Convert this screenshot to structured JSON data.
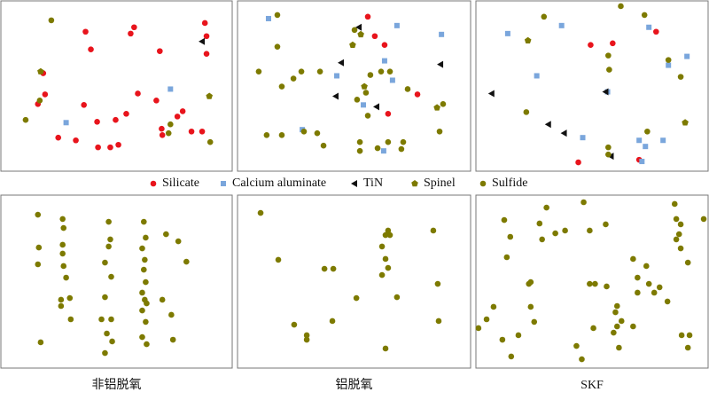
{
  "chart_data": [
    {
      "type": "scatter",
      "xlim": [
        0,
        100
      ],
      "ylim": [
        0,
        100
      ],
      "series": [
        {
          "name": "Silicate",
          "color": "#e8141c",
          "marker": "circle",
          "x": [
            36.6,
            57.6,
            56.1,
            88.2,
            88.9,
            38.9,
            68.7,
            88.9,
            18.3,
            19.1,
            16.0,
            35.9,
            59.2,
            67.2,
            78.6,
            76.3,
            54.2,
            41.6,
            49.6,
            24.8,
            32.4,
            50.8,
            42.0,
            47.3,
            69.5,
            69.8,
            82.4,
            87.0
          ],
          "y": [
            81.9,
            84.5,
            80.8,
            87.0,
            79.3,
            71.5,
            70.5,
            68.9,
            57.5,
            45.1,
            39.4,
            38.9,
            45.6,
            41.5,
            35.2,
            32.1,
            33.7,
            29.0,
            30.1,
            19.7,
            18.1,
            15.5,
            14.0,
            14.0,
            24.9,
            21.2,
            23.3,
            23.3
          ]
        },
        {
          "name": "Calcium aluminate",
          "color": "#7aa6dc",
          "marker": "square",
          "x": [
            73.3,
            28.2
          ],
          "y": [
            48.2,
            28.5
          ]
        },
        {
          "name": "TiN",
          "color": "#111111",
          "marker": "triangle",
          "x": [
            87.0
          ],
          "y": [
            76.2
          ]
        },
        {
          "name": "Spinel",
          "color": "#7d7a00",
          "marker": "pentagon",
          "x": [
            17.2,
            90.1
          ],
          "y": [
            58.5,
            44.0
          ]
        },
        {
          "name": "Sulfide",
          "color": "#7d7a00",
          "marker": "circle",
          "x": [
            21.8,
            10.7,
            16.8,
            73.3,
            72.5,
            90.5
          ],
          "y": [
            88.6,
            30.1,
            41.5,
            27.5,
            22.3,
            17.1
          ]
        }
      ]
    },
    {
      "type": "scatter",
      "xlim": [
        0,
        100
      ],
      "ylim": [
        0,
        100
      ],
      "series": [
        {
          "name": "Silicate",
          "color": "#e8141c",
          "marker": "circle",
          "x": [
            55.9,
            58.9,
            63.1,
            64.6,
            77.2
          ],
          "y": [
            90.7,
            79.3,
            74.1,
            33.7,
            45.1
          ]
        },
        {
          "name": "Calcium aluminate",
          "color": "#7aa6dc",
          "marker": "square",
          "x": [
            13.3,
            68.4,
            87.5,
            63.1,
            66.5,
            42.6,
            54.0,
            27.8,
            62.7
          ],
          "y": [
            89.6,
            85.5,
            80.3,
            64.8,
            53.4,
            56.0,
            38.9,
            24.4,
            11.9
          ]
        },
        {
          "name": "TiN",
          "color": "#111111",
          "marker": "triangle",
          "x": [
            52.1,
            44.5,
            87.1,
            42.2,
            59.7
          ],
          "y": [
            84.5,
            63.7,
            62.7,
            44.0,
            37.8
          ]
        },
        {
          "name": "Spinel",
          "color": "#7d7a00",
          "marker": "pentagon",
          "x": [
            52.9,
            49.4,
            54.4,
            85.6
          ],
          "y": [
            80.3,
            74.1,
            49.7,
            37.3
          ]
        },
        {
          "name": "Sulfide",
          "color": "#7d7a00",
          "marker": "circle",
          "x": [
            17.1,
            50.2,
            17.1,
            9.1,
            27.4,
            24.0,
            19.0,
            35.4,
            61.6,
            57.0,
            65.4,
            73.0,
            55.1,
            88.2,
            55.9,
            51.3,
            28.5,
            12.5,
            19.0,
            34.2,
            36.9,
            52.5,
            64.6,
            71.1,
            70.3,
            60.1,
            52.5,
            86.7
          ],
          "y": [
            91.7,
            82.9,
            73.1,
            58.5,
            58.5,
            54.4,
            49.7,
            58.5,
            58.5,
            56.5,
            58.5,
            48.2,
            46.1,
            39.4,
            32.6,
            42.0,
            23.3,
            21.2,
            21.2,
            22.3,
            15.0,
            17.1,
            17.1,
            17.1,
            13.0,
            13.5,
            11.9,
            23.3
          ]
        }
      ]
    },
    {
      "type": "scatter",
      "xlim": [
        0,
        100
      ],
      "ylim": [
        0,
        100
      ],
      "series": [
        {
          "name": "Silicate",
          "color": "#e8141c",
          "marker": "circle",
          "x": [
            49.4,
            58.9,
            77.6,
            70.3,
            44.1
          ],
          "y": [
            74.1,
            75.1,
            81.9,
            6.7,
            5.2
          ]
        },
        {
          "name": "Calcium aluminate",
          "color": "#7aa6dc",
          "marker": "square",
          "x": [
            13.7,
            36.9,
            74.5,
            82.9,
            90.9,
            26.2,
            56.7,
            46.0,
            70.3,
            80.6,
            73.0,
            71.5
          ],
          "y": [
            80.8,
            85.5,
            84.5,
            62.2,
            67.4,
            56.0,
            46.6,
            19.7,
            18.1,
            18.1,
            14.5,
            5.7
          ]
        },
        {
          "name": "TiN",
          "color": "#111111",
          "marker": "triangle",
          "x": [
            6.8,
            55.9,
            31.2,
            38.0,
            58.2
          ],
          "y": [
            45.6,
            46.6,
            27.5,
            22.3,
            8.8
          ]
        },
        {
          "name": "Spinel",
          "color": "#7d7a00",
          "marker": "pentagon",
          "x": [
            22.4,
            90.1
          ],
          "y": [
            76.7,
            28.5
          ]
        },
        {
          "name": "Sulfide",
          "color": "#7d7a00",
          "marker": "circle",
          "x": [
            29.3,
            62.4,
            72.6,
            57.0,
            57.4,
            82.9,
            88.2,
            21.7,
            57.0,
            57.0,
            73.8
          ],
          "y": [
            90.7,
            96.9,
            91.7,
            67.9,
            59.6,
            65.3,
            55.4,
            34.7,
            14.0,
            9.8,
            23.3
          ]
        }
      ]
    },
    {
      "type": "scatter",
      "title": "非铝脱氧",
      "xlim": [
        0,
        100
      ],
      "ylim": [
        0,
        100
      ],
      "series": [
        {
          "name": "Sulfide",
          "color": "#7d7a00",
          "marker": "circle",
          "x": [
            16.0,
            16.4,
            16.0,
            26.7,
            27.1,
            26.7,
            26.7,
            27.1,
            28.2,
            46.6,
            47.3,
            46.6,
            45.0,
            47.7,
            45.0,
            26.0,
            26.0,
            29.8,
            30.2,
            43.5,
            47.7,
            45.8,
            48.1,
            17.2,
            45.0,
            61.8,
            62.6,
            61.1,
            62.2,
            61.8,
            62.6,
            61.1,
            62.2,
            63.0,
            61.1,
            62.6,
            61.1,
            63.0,
            71.4,
            76.7,
            80.2,
            69.8,
            73.7,
            74.4
          ],
          "y": [
            88.7,
            69.7,
            60.0,
            86.2,
            81.0,
            71.3,
            66.2,
            59.0,
            52.3,
            84.6,
            74.4,
            70.3,
            61.0,
            52.8,
            41.0,
            39.5,
            35.9,
            40.5,
            28.2,
            28.2,
            28.2,
            20.0,
            15.4,
            14.9,
            8.7,
            84.6,
            75.4,
            69.2,
            62.6,
            56.9,
            49.7,
            43.6,
            39.5,
            37.4,
            33.3,
            26.7,
            17.9,
            13.8,
            77.4,
            73.3,
            61.5,
            39.5,
            30.8,
            16.4
          ]
        }
      ]
    },
    {
      "type": "scatter",
      "title": "铝脱氧",
      "xlim": [
        0,
        100
      ],
      "ylim": [
        0,
        100
      ],
      "series": [
        {
          "name": "Sulfide",
          "color": "#7d7a00",
          "marker": "circle",
          "x": [
            9.9,
            64.6,
            63.5,
            65.4,
            84.0,
            17.5,
            37.3,
            41.1,
            62.0,
            63.5,
            64.6,
            62.0,
            85.9,
            51.0,
            68.4,
            40.7,
            24.3,
            29.7,
            29.7,
            63.5,
            86.3
          ],
          "y": [
            89.7,
            79.5,
            76.9,
            76.9,
            79.5,
            62.6,
            57.4,
            57.4,
            70.3,
            63.1,
            57.9,
            53.8,
            48.7,
            40.5,
            41.0,
            27.2,
            25.1,
            19.0,
            16.4,
            11.3,
            27.2
          ]
        }
      ]
    },
    {
      "type": "scatter",
      "title": "SKF",
      "xlim": [
        0,
        100
      ],
      "ylim": [
        0,
        100
      ],
      "series": [
        {
          "name": "Sulfide",
          "color": "#7d7a00",
          "marker": "circle",
          "x": [
            12.2,
            30.4,
            46.4,
            85.6,
            86.3,
            88.2,
            98.1,
            14.8,
            27.4,
            28.5,
            34.2,
            38.4,
            49.0,
            55.9,
            86.3,
            87.5,
            13.3,
            23.6,
            22.8,
            49.0,
            51.3,
            56.3,
            67.7,
            69.6,
            73.4,
            88.2,
            91.3,
            74.5,
            79.1,
            76.8,
            7.6,
            23.6,
            60.8,
            60.1,
            62.7,
            60.8,
            67.7,
            59.3,
            50.6,
            1.1,
            4.6,
            11.4,
            25.1,
            18.3,
            43.3,
            45.6,
            61.6,
            15.2,
            88.6,
            92.0,
            91.3,
            82.5,
            69.6
          ],
          "y": [
            85.6,
            92.8,
            95.9,
            94.9,
            86.2,
            83.1,
            86.2,
            75.9,
            83.6,
            74.4,
            77.9,
            79.5,
            79.5,
            83.1,
            74.4,
            77.4,
            64.1,
            49.7,
            48.7,
            48.7,
            48.7,
            47.2,
            63.1,
            52.3,
            59.0,
            69.2,
            61.0,
            48.7,
            46.7,
            43.6,
            35.4,
            35.4,
            35.9,
            32.3,
            27.2,
            24.1,
            24.1,
            20.5,
            23.1,
            23.1,
            28.2,
            16.4,
            26.7,
            19.0,
            12.8,
            5.1,
            11.8,
            6.7,
            19.0,
            19.0,
            11.8,
            38.5,
            43.6
          ]
        }
      ]
    }
  ]
}
